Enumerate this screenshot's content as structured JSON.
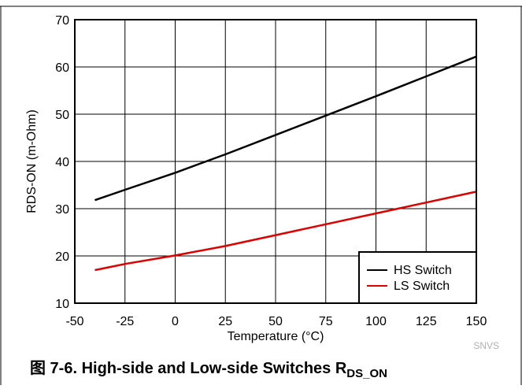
{
  "chart_data": {
    "type": "line",
    "xlabel": "Temperature (°C)",
    "ylabel": "RDS-ON (m-Ohm)",
    "xlim": [
      -50,
      150
    ],
    "ylim": [
      10,
      70
    ],
    "xticks": [
      -50,
      -25,
      0,
      25,
      50,
      75,
      100,
      125,
      150
    ],
    "yticks": [
      10,
      20,
      30,
      40,
      50,
      60,
      70
    ],
    "grid": true,
    "legend_position": "bottom-right",
    "series": [
      {
        "name": "HS Switch",
        "color": "#000000",
        "x": [
          -40,
          -25,
          0,
          25,
          50,
          75,
          100,
          125,
          150
        ],
        "y": [
          31.8,
          34.0,
          37.6,
          41.5,
          45.6,
          49.7,
          53.8,
          58.0,
          62.2
        ]
      },
      {
        "name": "LS Switch",
        "color": "#e00000",
        "x": [
          -40,
          -25,
          0,
          25,
          50,
          75,
          100,
          125,
          150
        ],
        "y": [
          17.0,
          18.3,
          20.1,
          22.1,
          24.4,
          26.7,
          29.0,
          31.3,
          33.6
        ]
      }
    ]
  },
  "watermark": "SNVS",
  "caption": {
    "prefix": "图 7-6. High-side and Low-side Switches R",
    "subscript": "DS_ON"
  }
}
